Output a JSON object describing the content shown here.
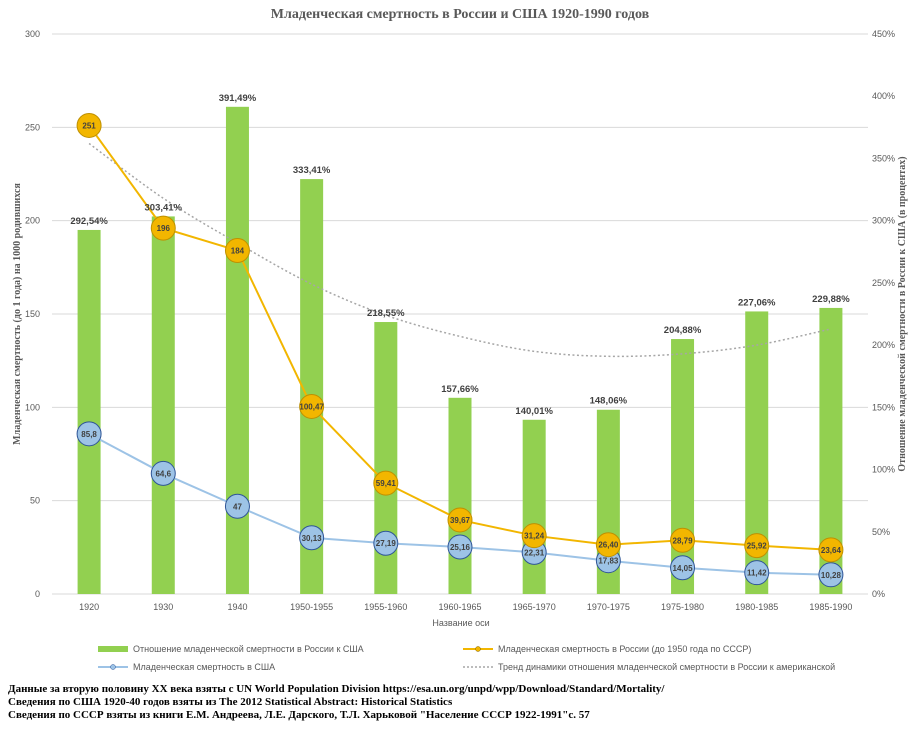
{
  "chart_data": {
    "type": "bar",
    "title": "Младенческая смертность в России и США 1920-1990 годов",
    "xlabel": "Название оси",
    "ylabel": "Младенческая смертность (до 1 года) на 1000 родившихся",
    "ylabel_right": "Отношение младенческой смертности в России к США (в процентах)",
    "ylim": [
      0,
      300
    ],
    "ylim_right": [
      0,
      450
    ],
    "yticks": [
      "0",
      "50",
      "100",
      "150",
      "200",
      "250",
      "300"
    ],
    "yticks_right": [
      "0%",
      "50%",
      "100%",
      "150%",
      "200%",
      "250%",
      "300%",
      "350%",
      "400%",
      "450%"
    ],
    "categories": [
      "1920",
      "1930",
      "1940",
      "1950-1955",
      "1955-1960",
      "1960-1965",
      "1965-1970",
      "1970-1975",
      "1975-1980",
      "1980-1985",
      "1985-1990"
    ],
    "series": [
      {
        "name": "Отношение младенческой смертности в России к США",
        "type": "bar",
        "axis": "right",
        "color": "#92d050",
        "values": [
          292.54,
          303.41,
          391.49,
          333.41,
          218.55,
          157.66,
          140.01,
          148.06,
          204.88,
          227.06,
          229.88
        ],
        "labels": [
          "292,54%",
          "303,41%",
          "391,49%",
          "333,41%",
          "218,55%",
          "157,66%",
          "140,01%",
          "148,06%",
          "204,88%",
          "227,06%",
          "229,88%"
        ]
      },
      {
        "name": "Младенческая смертность в России (до 1950 года по СССР)",
        "type": "line",
        "axis": "left",
        "color": "#f2b600",
        "values": [
          251,
          196,
          184,
          100.47,
          59.41,
          39.67,
          31.24,
          26.4,
          28.79,
          25.92,
          23.64
        ],
        "labels": [
          "251",
          "196",
          "184",
          "100,47",
          "59,41",
          "39,67",
          "31,24",
          "26,40",
          "28,79",
          "25,92",
          "23,64"
        ]
      },
      {
        "name": "Младенческая смертность в США",
        "type": "line",
        "axis": "left",
        "color": "#9dc3e6",
        "values": [
          85.8,
          64.6,
          47,
          30.13,
          27.19,
          25.16,
          22.31,
          17.83,
          14.05,
          11.42,
          10.28
        ],
        "labels": [
          "85,8",
          "64,6",
          "47",
          "30,13",
          "27,19",
          "25,16",
          "22,31",
          "17,83",
          "14,05",
          "11,42",
          "10,28"
        ]
      },
      {
        "name": "Тренд динамики отношения младенческой смертности в России к американской",
        "type": "trend",
        "axis": "right",
        "color": "#a6a6a6",
        "values": [
          362,
          318,
          282,
          249,
          224,
          207,
          195,
          191,
          193,
          200,
          213
        ]
      }
    ],
    "legend_position": "bottom",
    "grid": true
  },
  "sources": [
    "Данные за вторую половину XX века взяты с UN World Population Division https://esa.un.org/unpd/wpp/Download/Standard/Mortality/",
    "Сведения по США 1920-40 годов взяты из The 2012 Statistical Abstract: Historical Statistics",
    "Сведения по СССР взяты из книги Е.М. Андреева, Л.Е. Дарского, Т.Л. Харьковой \"Население СССР 1922-1991\"с. 57"
  ]
}
